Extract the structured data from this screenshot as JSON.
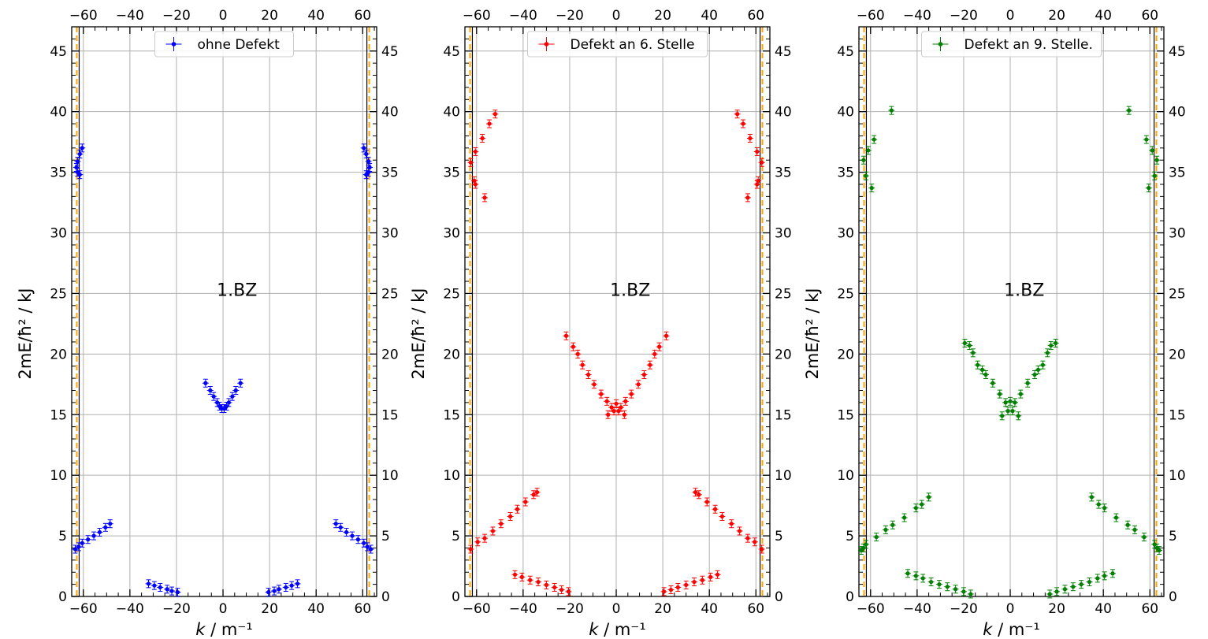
{
  "chart_data": [
    {
      "type": "scatter",
      "legend": "ohne Defekt",
      "color": "#0000ff",
      "annotation": "1.BZ",
      "xlabel": "k / m⁻¹",
      "ylabel": "2mE/ħ² / kJ",
      "xlim": [
        -65,
        66
      ],
      "ylim": [
        0,
        47
      ],
      "xticks": [
        -60,
        -40,
        -20,
        0,
        20,
        40,
        60
      ],
      "yticks": [
        0,
        5,
        10,
        15,
        20,
        25,
        30,
        35,
        40,
        45
      ],
      "grid": true,
      "legend_position": "top-center",
      "boundary_lines": [
        -62.8,
        -61.8,
        61.8,
        62.8
      ],
      "points": [
        [
          -63.5,
          3.9
        ],
        [
          -62,
          4.1
        ],
        [
          -60.5,
          4.4
        ],
        [
          -58,
          4.7
        ],
        [
          -55.5,
          5.0
        ],
        [
          -53,
          5.3
        ],
        [
          -50.5,
          5.7
        ],
        [
          -48.5,
          6.0
        ],
        [
          48.5,
          6.0
        ],
        [
          50.5,
          5.7
        ],
        [
          53,
          5.3
        ],
        [
          55.5,
          5.0
        ],
        [
          58,
          4.7
        ],
        [
          60.5,
          4.4
        ],
        [
          62,
          4.1
        ],
        [
          63.5,
          3.9
        ],
        [
          -32,
          1.05
        ],
        [
          -29.5,
          0.9
        ],
        [
          -27,
          0.75
        ],
        [
          -24,
          0.6
        ],
        [
          -22,
          0.45
        ],
        [
          -19.5,
          0.35
        ],
        [
          19.5,
          0.35
        ],
        [
          22,
          0.45
        ],
        [
          24,
          0.6
        ],
        [
          27,
          0.75
        ],
        [
          29.5,
          0.9
        ],
        [
          32,
          1.05
        ],
        [
          -7.5,
          17.6
        ],
        [
          -5.5,
          17.0
        ],
        [
          -4,
          16.5
        ],
        [
          -2.5,
          16.0
        ],
        [
          -1.5,
          15.7
        ],
        [
          -0.5,
          15.5
        ],
        [
          0.5,
          15.5
        ],
        [
          1.5,
          15.7
        ],
        [
          2.5,
          16.0
        ],
        [
          4,
          16.5
        ],
        [
          5.5,
          17.0
        ],
        [
          7.5,
          17.6
        ],
        [
          -60.5,
          37.0
        ],
        [
          -61.5,
          36.5
        ],
        [
          -62.5,
          35.9
        ],
        [
          -63,
          35.4
        ],
        [
          -62.5,
          35.0
        ],
        [
          -61.5,
          34.8
        ],
        [
          60.5,
          37.0
        ],
        [
          61.5,
          36.5
        ],
        [
          62.5,
          35.9
        ],
        [
          63,
          35.4
        ],
        [
          62.5,
          35.0
        ],
        [
          61.5,
          34.8
        ]
      ]
    },
    {
      "type": "scatter",
      "legend": "Defekt an 6. Stelle",
      "color": "#ff0000",
      "annotation": "1.BZ",
      "xlabel": "k / m⁻¹",
      "ylabel": "2mE/ħ² / kJ",
      "xlim": [
        -65,
        66
      ],
      "ylim": [
        0,
        47
      ],
      "xticks": [
        -60,
        -40,
        -20,
        0,
        20,
        40,
        60
      ],
      "yticks": [
        0,
        5,
        10,
        15,
        20,
        25,
        30,
        35,
        40,
        45
      ],
      "grid": true,
      "legend_position": "top-center",
      "boundary_lines": [
        -62.8,
        -61.8,
        61.8,
        62.8
      ],
      "points": [
        [
          -62.5,
          3.9
        ],
        [
          -59.5,
          4.5
        ],
        [
          -56.5,
          4.8
        ],
        [
          -53,
          5.4
        ],
        [
          -49.5,
          6.0
        ],
        [
          -45.5,
          6.6
        ],
        [
          -42.5,
          7.2
        ],
        [
          -39,
          7.8
        ],
        [
          -35.5,
          8.4
        ],
        [
          -34,
          8.6
        ],
        [
          34,
          8.6
        ],
        [
          35.5,
          8.4
        ],
        [
          39,
          7.8
        ],
        [
          42.5,
          7.2
        ],
        [
          45.5,
          6.6
        ],
        [
          49.5,
          6.0
        ],
        [
          53,
          5.4
        ],
        [
          56.5,
          4.8
        ],
        [
          59.5,
          4.5
        ],
        [
          62.5,
          3.9
        ],
        [
          -43.5,
          1.8
        ],
        [
          -40.5,
          1.6
        ],
        [
          -37,
          1.35
        ],
        [
          -33.5,
          1.2
        ],
        [
          -30,
          0.95
        ],
        [
          -26.5,
          0.75
        ],
        [
          -23.5,
          0.55
        ],
        [
          -20.5,
          0.4
        ],
        [
          20.5,
          0.4
        ],
        [
          23.5,
          0.55
        ],
        [
          26.5,
          0.75
        ],
        [
          30,
          0.95
        ],
        [
          33.5,
          1.2
        ],
        [
          37,
          1.35
        ],
        [
          40.5,
          1.6
        ],
        [
          43.5,
          1.8
        ],
        [
          -21.5,
          21.5
        ],
        [
          -18.5,
          20.6
        ],
        [
          -16.5,
          20.0
        ],
        [
          -14.5,
          19.1
        ],
        [
          -12,
          18.3
        ],
        [
          -9.5,
          17.5
        ],
        [
          -6.5,
          16.7
        ],
        [
          -4,
          16.1
        ],
        [
          -2,
          15.6
        ],
        [
          0,
          15.9
        ],
        [
          2,
          15.6
        ],
        [
          4,
          16.1
        ],
        [
          6.5,
          16.7
        ],
        [
          9.5,
          17.5
        ],
        [
          12,
          18.3
        ],
        [
          14.5,
          19.1
        ],
        [
          16.5,
          20.0
        ],
        [
          18.5,
          20.6
        ],
        [
          21.5,
          21.5
        ],
        [
          -3.5,
          15.0
        ],
        [
          -1,
          15.3
        ],
        [
          1,
          15.3
        ],
        [
          3.5,
          15.0
        ],
        [
          -52,
          39.8
        ],
        [
          -54.5,
          39.0
        ],
        [
          -57.5,
          37.8
        ],
        [
          -60.5,
          36.7
        ],
        [
          -62.5,
          35.8
        ],
        [
          -61,
          34.3
        ],
        [
          -60.5,
          34.0
        ],
        [
          -56.5,
          32.9
        ],
        [
          52,
          39.8
        ],
        [
          54.5,
          39.0
        ],
        [
          57.5,
          37.8
        ],
        [
          60.5,
          36.7
        ],
        [
          62.5,
          35.8
        ],
        [
          61,
          34.3
        ],
        [
          60.5,
          34.0
        ],
        [
          56.5,
          32.9
        ]
      ]
    },
    {
      "type": "scatter",
      "legend": "Defekt an 9. Stelle.",
      "color": "#008000",
      "annotation": "1.BZ",
      "xlabel": "k / m⁻¹",
      "ylabel": "2mE/ħ² / kJ",
      "xlim": [
        -65,
        66
      ],
      "ylim": [
        0,
        47
      ],
      "xticks": [
        -60,
        -40,
        -20,
        0,
        20,
        40,
        60
      ],
      "yticks": [
        0,
        5,
        10,
        15,
        20,
        25,
        30,
        35,
        40,
        45
      ],
      "grid": true,
      "legend_position": "top-center",
      "boundary_lines": [
        -62.8,
        -61.8,
        61.8,
        62.8
      ],
      "points": [
        [
          -64,
          3.8
        ],
        [
          -63,
          4.0
        ],
        [
          -62,
          4.3
        ],
        [
          -57.5,
          4.9
        ],
        [
          -53.5,
          5.5
        ],
        [
          -50.5,
          5.9
        ],
        [
          -45.5,
          6.5
        ],
        [
          -40.5,
          7.3
        ],
        [
          -38,
          7.6
        ],
        [
          -35,
          8.2
        ],
        [
          35,
          8.2
        ],
        [
          38,
          7.6
        ],
        [
          40.5,
          7.3
        ],
        [
          45.5,
          6.5
        ],
        [
          50.5,
          5.9
        ],
        [
          53.5,
          5.5
        ],
        [
          57.5,
          4.9
        ],
        [
          62,
          4.3
        ],
        [
          63,
          4.0
        ],
        [
          64,
          3.8
        ],
        [
          -44,
          1.9
        ],
        [
          -40.5,
          1.7
        ],
        [
          -37.5,
          1.5
        ],
        [
          -34,
          1.2
        ],
        [
          -30.5,
          1.0
        ],
        [
          -27,
          0.8
        ],
        [
          -23.5,
          0.6
        ],
        [
          -20,
          0.4
        ],
        [
          -17,
          0.2
        ],
        [
          17,
          0.2
        ],
        [
          20,
          0.4
        ],
        [
          23.5,
          0.6
        ],
        [
          27,
          0.8
        ],
        [
          30.5,
          1.0
        ],
        [
          34,
          1.2
        ],
        [
          37.5,
          1.5
        ],
        [
          40.5,
          1.7
        ],
        [
          44,
          1.9
        ],
        [
          -19.5,
          20.9
        ],
        [
          -17.5,
          20.7
        ],
        [
          -16,
          20.1
        ],
        [
          -14,
          19.1
        ],
        [
          -12,
          18.7
        ],
        [
          -10.5,
          18.3
        ],
        [
          -7.5,
          17.6
        ],
        [
          -4.5,
          16.7
        ],
        [
          -2,
          16.0
        ],
        [
          0,
          16.1
        ],
        [
          2,
          16.0
        ],
        [
          4.5,
          16.7
        ],
        [
          7.5,
          17.6
        ],
        [
          10.5,
          18.3
        ],
        [
          12,
          18.7
        ],
        [
          14,
          19.1
        ],
        [
          16,
          20.1
        ],
        [
          17.5,
          20.7
        ],
        [
          19.5,
          20.9
        ],
        [
          -3.5,
          14.9
        ],
        [
          -1,
          15.3
        ],
        [
          1,
          15.3
        ],
        [
          3.5,
          14.9
        ],
        [
          -51,
          40.1
        ],
        [
          -58.5,
          37.7
        ],
        [
          -61,
          36.8
        ],
        [
          -63,
          36.0
        ],
        [
          -62,
          34.7
        ],
        [
          -59.5,
          33.7
        ],
        [
          51,
          40.1
        ],
        [
          58.5,
          37.7
        ],
        [
          61,
          36.8
        ],
        [
          63,
          36.0
        ],
        [
          62,
          34.7
        ],
        [
          59.5,
          33.7
        ]
      ]
    }
  ]
}
